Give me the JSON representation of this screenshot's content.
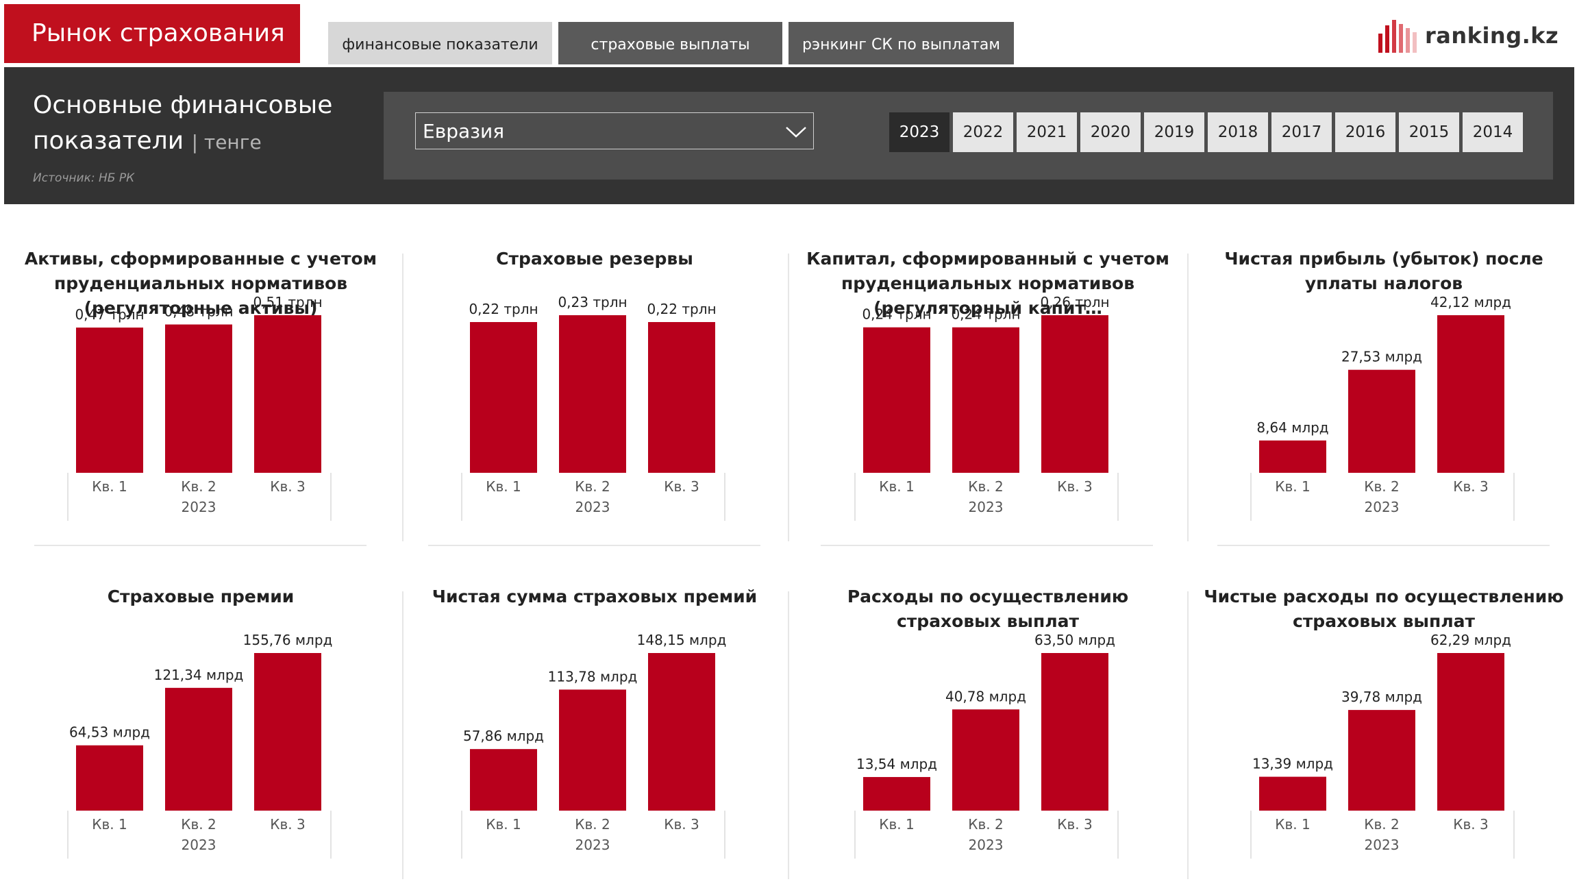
{
  "app_title": "Рынок страхования",
  "tabs": [
    {
      "label": "финансовые показатели"
    },
    {
      "label": "страховые выплаты"
    },
    {
      "label": "рэнкинг СК по выплатам"
    }
  ],
  "logo": {
    "text": "ranking.kz",
    "icon": "bar-logo-icon"
  },
  "header": {
    "title": "Основные финансовые показатели",
    "unit": "| тенге",
    "source": "Источник: НБ РК"
  },
  "filter": {
    "company": "Евразия",
    "years": [
      "2023",
      "2022",
      "2021",
      "2020",
      "2019",
      "2018",
      "2017",
      "2016",
      "2015",
      "2014"
    ],
    "selected_year": "2023"
  },
  "colors": {
    "bar": "#b8001c",
    "accent": "#c0101e",
    "header_bg": "#333333"
  },
  "chart_data": [
    {
      "type": "bar",
      "title": "Активы, сформированные с учетом пруденциальных нормативов (регуляторные активы)",
      "categories": [
        "Кв. 1",
        "Кв. 2",
        "Кв. 3"
      ],
      "group_label": "2023",
      "values": [
        0.47,
        0.48,
        0.51
      ],
      "labels": [
        "0,47 трлн",
        "0,48 трлн",
        "0,51 трлн"
      ],
      "unit": "трлн"
    },
    {
      "type": "bar",
      "title": "Страховые резервы",
      "categories": [
        "Кв. 1",
        "Кв. 2",
        "Кв. 3"
      ],
      "group_label": "2023",
      "values": [
        0.22,
        0.23,
        0.22
      ],
      "labels": [
        "0,22 трлн",
        "0,23 трлн",
        "0,22 трлн"
      ],
      "unit": "трлн"
    },
    {
      "type": "bar",
      "title": "Капитал, сформированный с учетом пруденциальных нормативов (регуляторный капит…",
      "categories": [
        "Кв. 1",
        "Кв. 2",
        "Кв. 3"
      ],
      "group_label": "2023",
      "values": [
        0.24,
        0.24,
        0.26
      ],
      "labels": [
        "0,24 трлн",
        "0,24 трлн",
        "0,26 трлн"
      ],
      "unit": "трлн"
    },
    {
      "type": "bar",
      "title": "Чистая прибыль (убыток) после уплаты налогов",
      "categories": [
        "Кв. 1",
        "Кв. 2",
        "Кв. 3"
      ],
      "group_label": "2023",
      "values": [
        8.64,
        27.53,
        42.12
      ],
      "labels": [
        "8,64 млрд",
        "27,53 млрд",
        "42,12 млрд"
      ],
      "unit": "млрд"
    },
    {
      "type": "bar",
      "title": "Страховые премии",
      "categories": [
        "Кв. 1",
        "Кв. 2",
        "Кв. 3"
      ],
      "group_label": "2023",
      "values": [
        64.53,
        121.34,
        155.76
      ],
      "labels": [
        "64,53 млрд",
        "121,34 млрд",
        "155,76 млрд"
      ],
      "unit": "млрд"
    },
    {
      "type": "bar",
      "title": "Чистая сумма страховых премий",
      "categories": [
        "Кв. 1",
        "Кв. 2",
        "Кв. 3"
      ],
      "group_label": "2023",
      "values": [
        57.86,
        113.78,
        148.15
      ],
      "labels": [
        "57,86 млрд",
        "113,78 млрд",
        "148,15 млрд"
      ],
      "unit": "млрд"
    },
    {
      "type": "bar",
      "title": "Расходы по осуществлению страховых выплат",
      "categories": [
        "Кв. 1",
        "Кв. 2",
        "Кв. 3"
      ],
      "group_label": "2023",
      "values": [
        13.54,
        40.78,
        63.5
      ],
      "labels": [
        "13,54 млрд",
        "40,78 млрд",
        "63,50 млрд"
      ],
      "unit": "млрд"
    },
    {
      "type": "bar",
      "title": "Чистые расходы по осуществлению страховых выплат",
      "categories": [
        "Кв. 1",
        "Кв. 2",
        "Кв. 3"
      ],
      "group_label": "2023",
      "values": [
        13.39,
        39.78,
        62.29
      ],
      "labels": [
        "13,39 млрд",
        "39,78 млрд",
        "62,29 млрд"
      ],
      "unit": "млрд"
    }
  ]
}
